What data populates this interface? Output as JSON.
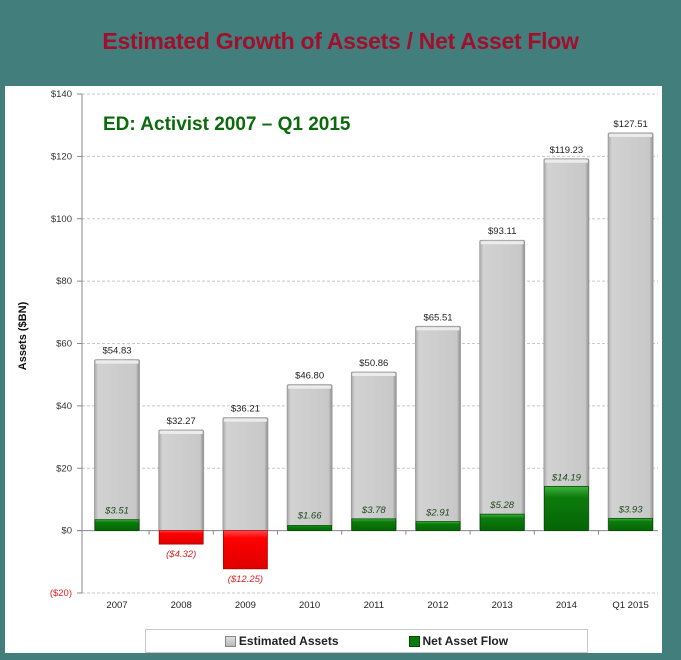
{
  "page_title": "Estimated Growth of Assets / Net Asset Flow",
  "colors": {
    "background": "#417e7c",
    "title": "#a0102e",
    "subtitle": "#0b6a0b",
    "assets_bar": "#c8c8c8",
    "flow_positive": "#0a7a0a",
    "flow_negative": "#ff0000",
    "negative_text": "#e02020"
  },
  "chart_data": {
    "type": "bar",
    "title": "ED: Activist 2007 – Q1 2015",
    "xlabel": "",
    "ylabel": "Assets ($BN)",
    "ylim": [
      -20,
      140
    ],
    "yticks": [
      -20,
      0,
      20,
      40,
      60,
      80,
      100,
      120,
      140
    ],
    "ytick_labels": [
      "($20)",
      "$0",
      "$20",
      "$40",
      "$60",
      "$80",
      "$100",
      "$120",
      "$140"
    ],
    "grid": true,
    "legend_position": "bottom",
    "categories": [
      "2007",
      "2008",
      "2009",
      "2010",
      "2011",
      "2012",
      "2013",
      "2014",
      "Q1 2015"
    ],
    "series": [
      {
        "name": "Estimated Assets",
        "values": [
          54.83,
          32.27,
          36.21,
          46.8,
          50.86,
          65.51,
          93.11,
          119.23,
          127.51
        ],
        "labels": [
          "$54.83",
          "$32.27",
          "$36.21",
          "$46.80",
          "$50.86",
          "$65.51",
          "$93.11",
          "$119.23",
          "$127.51"
        ]
      },
      {
        "name": "Net Asset Flow",
        "values": [
          3.51,
          -4.32,
          -12.25,
          1.66,
          3.78,
          2.91,
          5.28,
          14.19,
          3.93
        ],
        "labels": [
          "$3.51",
          "($4.32)",
          "($12.25)",
          "$1.66",
          "$3.78",
          "$2.91",
          "$5.28",
          "$14.19",
          "$3.93"
        ]
      }
    ]
  },
  "legend": {
    "items": [
      {
        "label": "Estimated Assets",
        "icon": "gray-square-icon"
      },
      {
        "label": "Net Asset Flow",
        "icon": "green-square-icon"
      }
    ]
  }
}
